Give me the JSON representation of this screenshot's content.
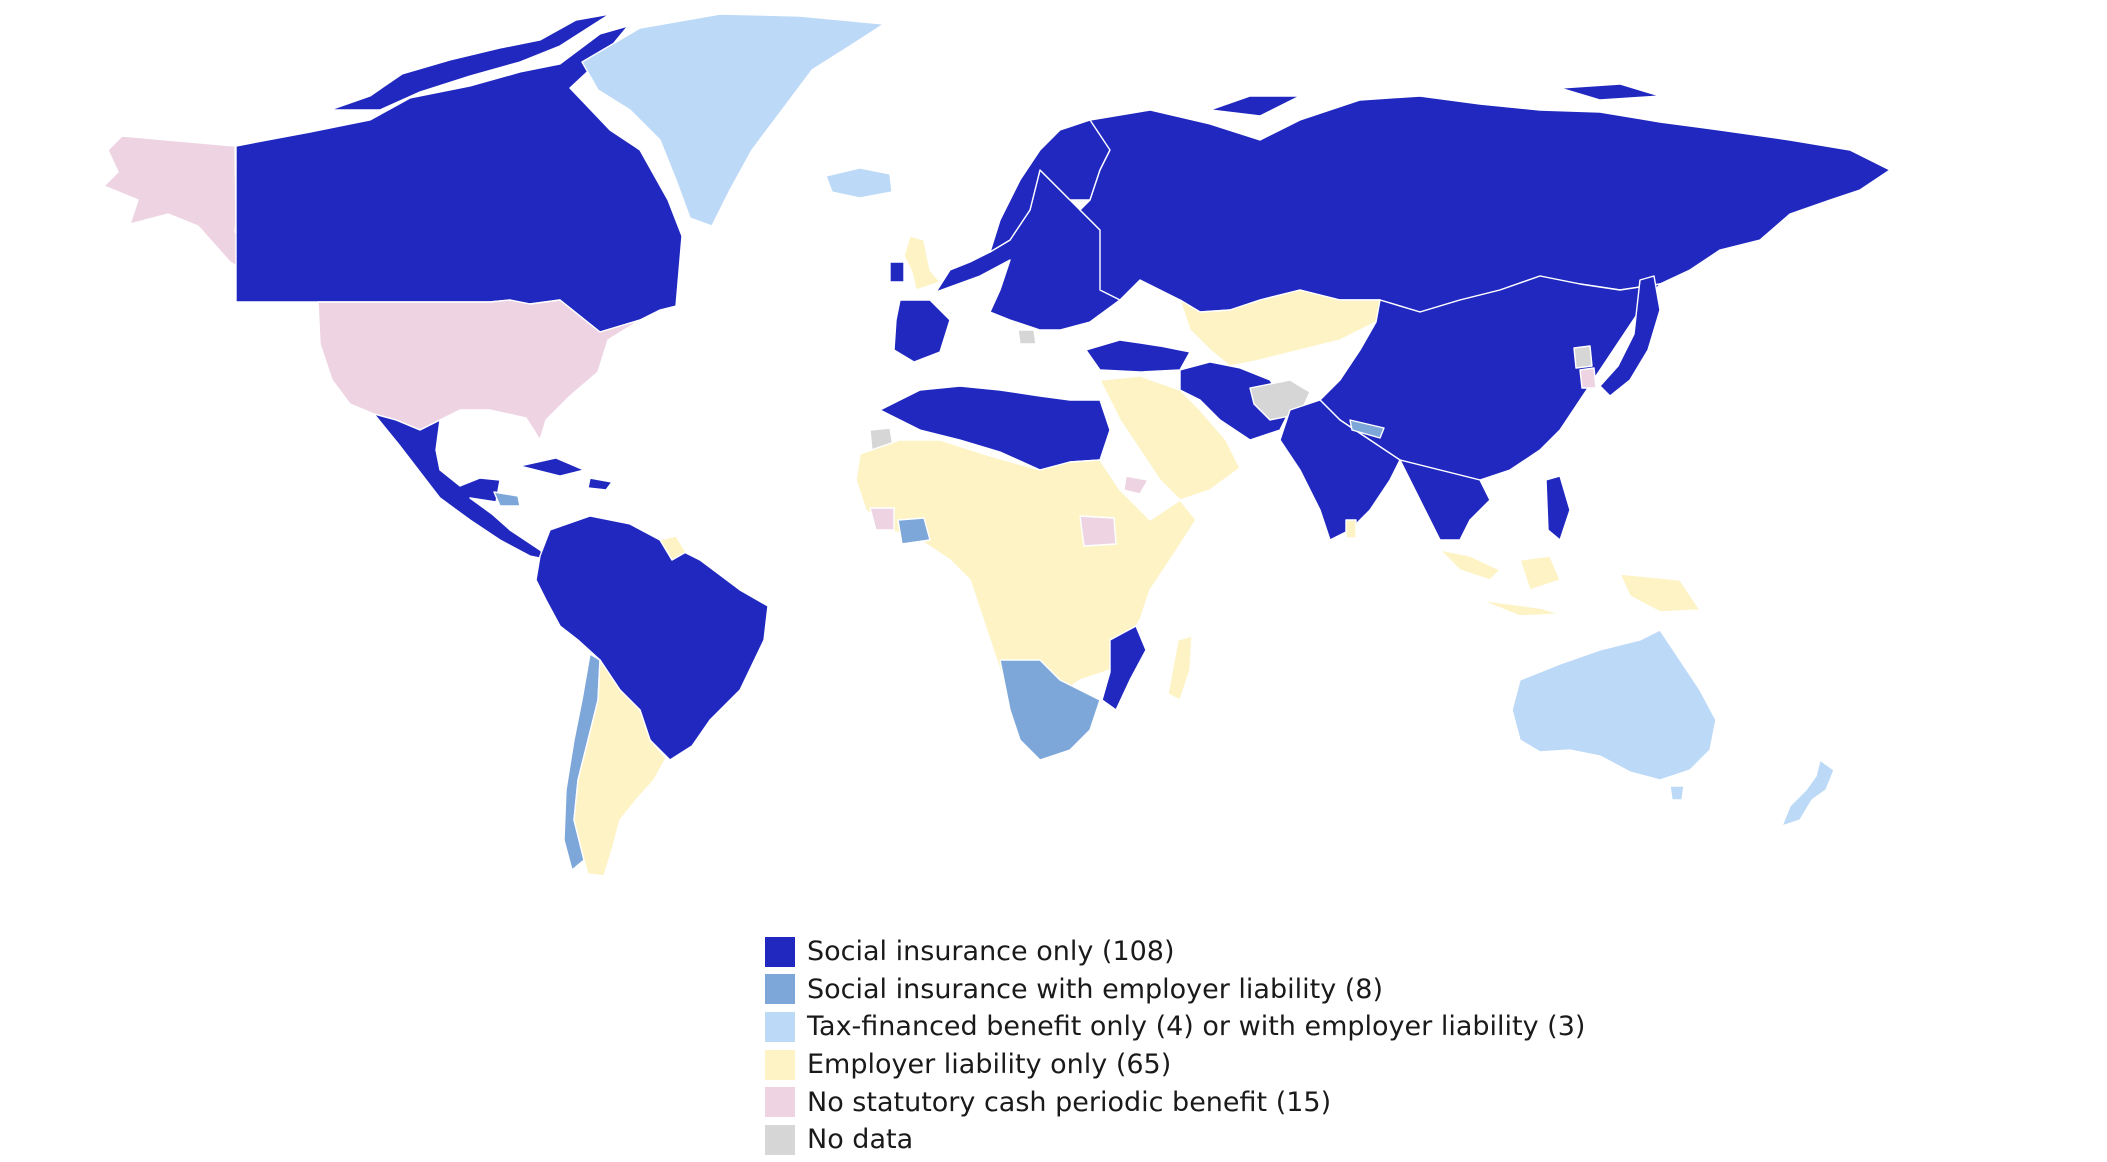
{
  "legend": {
    "items": [
      {
        "key": "social",
        "label": "Social insurance only (108)",
        "color": "#2028c0"
      },
      {
        "key": "social_emp",
        "label": "Social insurance with employer liability (8)",
        "color": "#7da7d9"
      },
      {
        "key": "tax",
        "label": "Tax-financed benefit only (4) or with employer liability (3)",
        "color": "#bcd9f7"
      },
      {
        "key": "employer",
        "label": "Employer liability only (65)",
        "color": "#fdf3c5"
      },
      {
        "key": "none",
        "label": "No statutory cash periodic benefit (15)",
        "color": "#eed4e3"
      },
      {
        "key": "nodata",
        "label": "No data",
        "color": "#d6d6d6"
      }
    ]
  },
  "map": {
    "background": "#ffffff",
    "border_color": "#ffffff"
  }
}
